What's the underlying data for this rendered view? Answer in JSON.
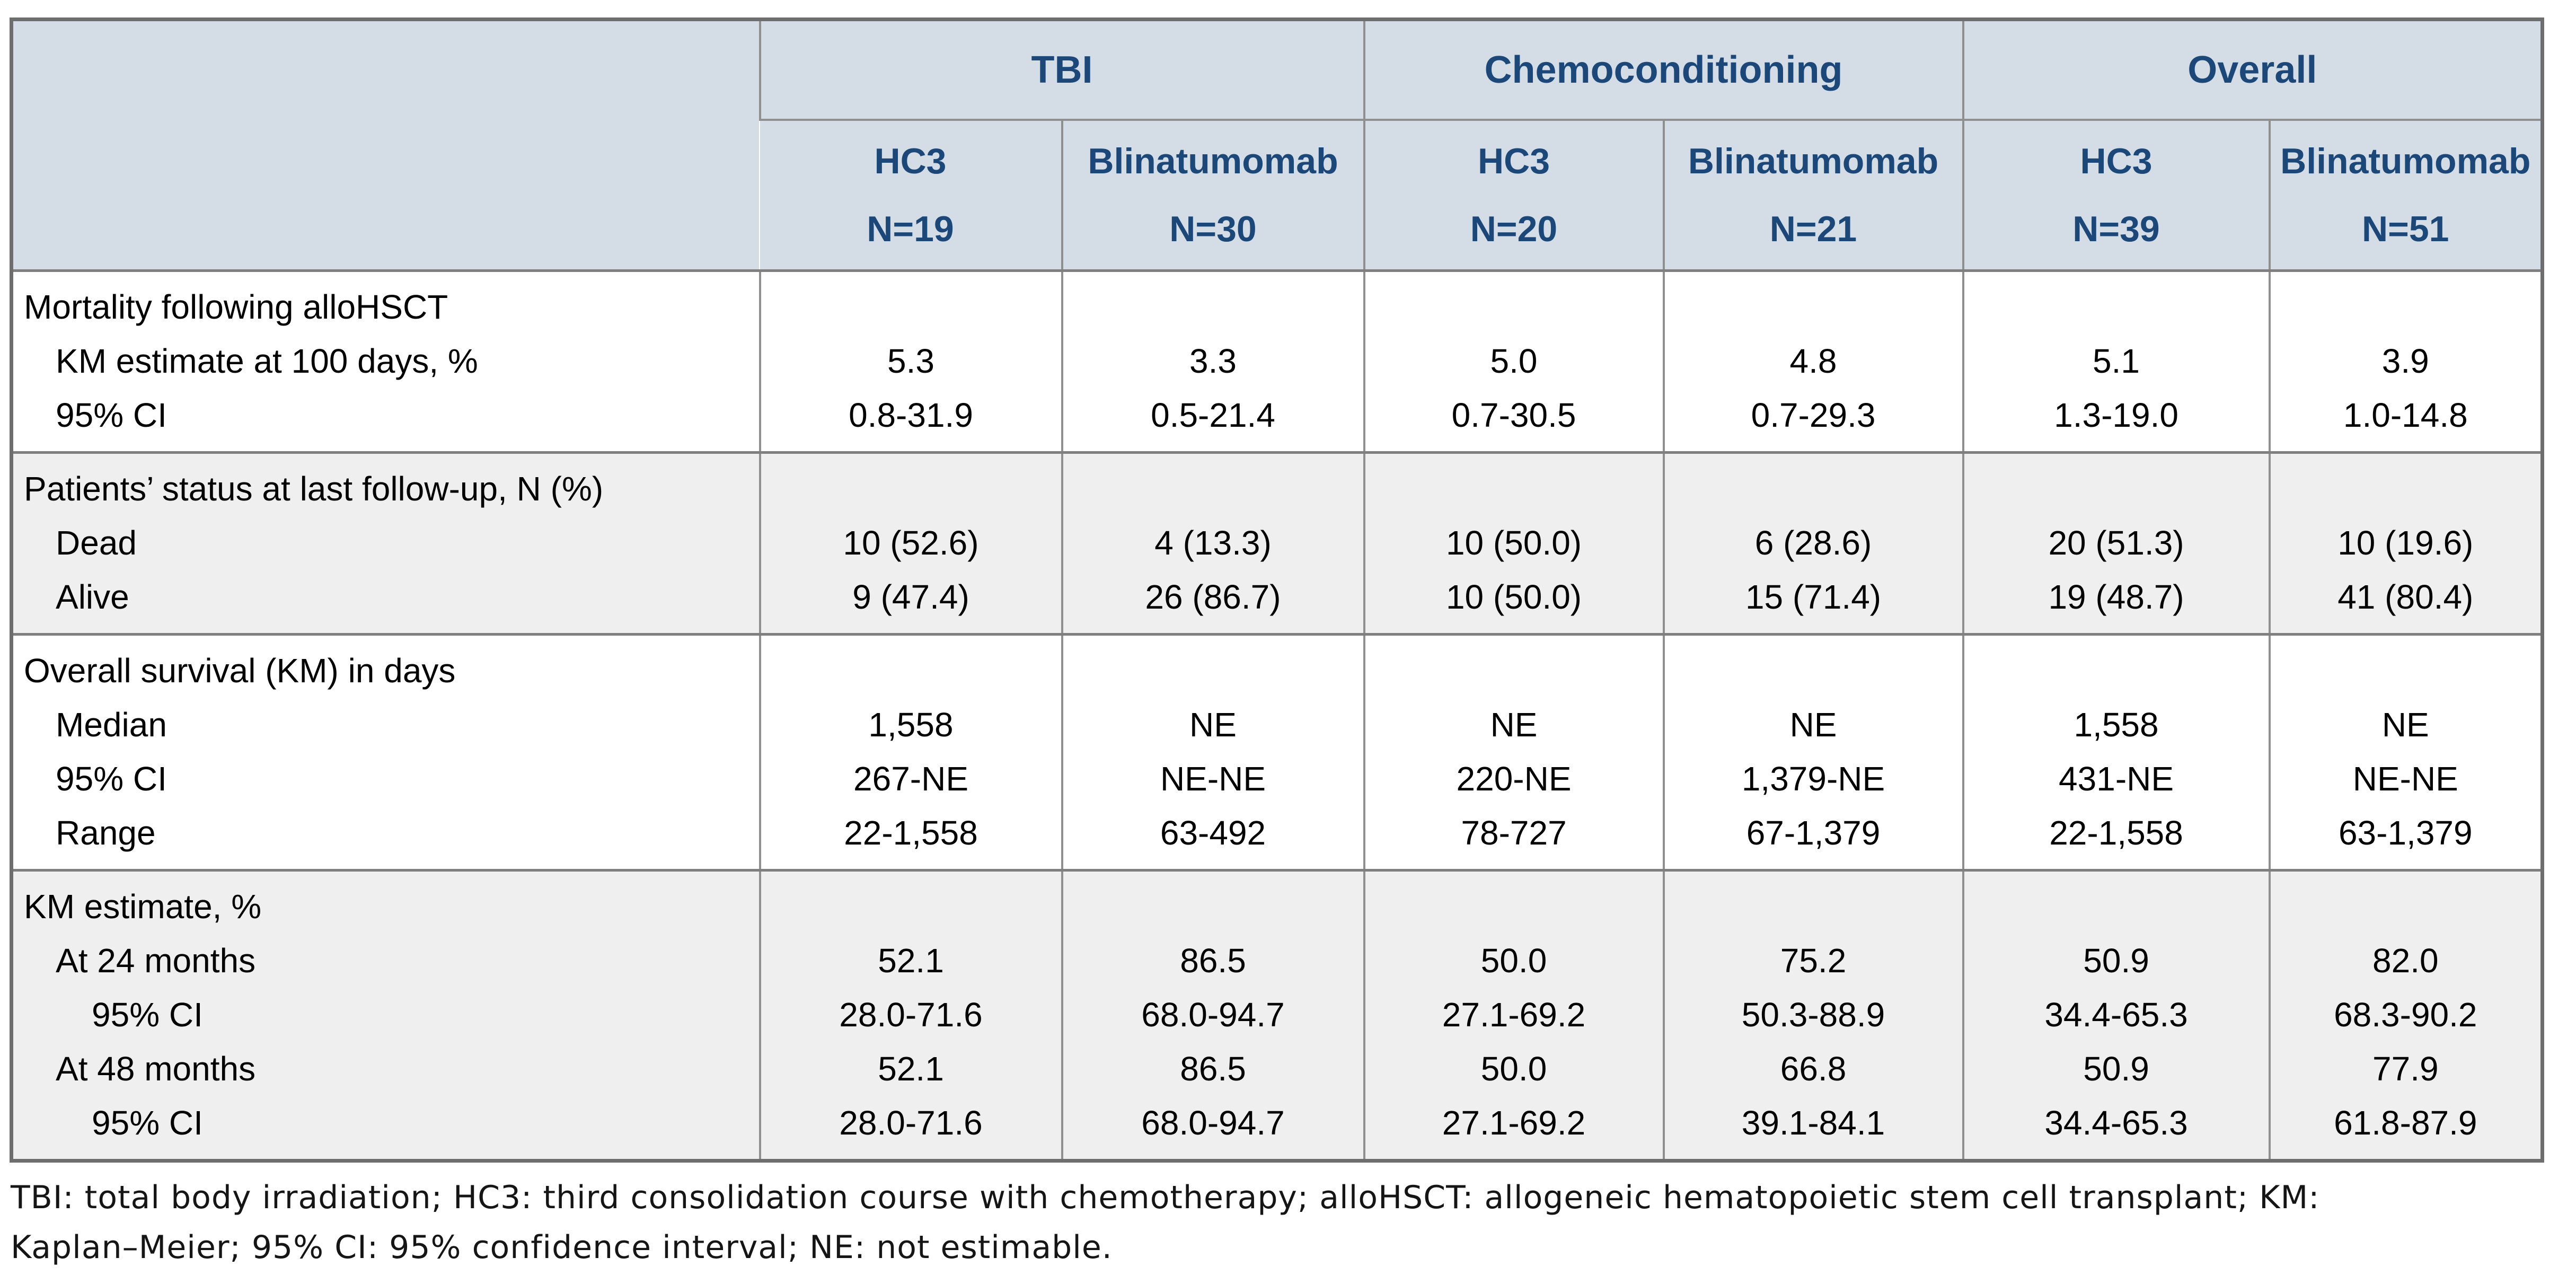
{
  "colors": {
    "header_background": "#D4DDE6",
    "header_text_navy": "#1B4879",
    "group_shade_gray": "#EFEFEF",
    "grid_border_gray": "#8F8F8F",
    "outer_border_gray": "#6E6E6E"
  },
  "table": {
    "header": {
      "corner": "",
      "groups": [
        {
          "label": "TBI"
        },
        {
          "label": "Chemoconditioning"
        },
        {
          "label": "Overall"
        }
      ],
      "columns": [
        {
          "treatment": "HC3",
          "n": "N=19"
        },
        {
          "treatment": "Blinatumomab",
          "n": "N=30"
        },
        {
          "treatment": "HC3",
          "n": "N=20"
        },
        {
          "treatment": "Blinatumomab",
          "n": "N=21"
        },
        {
          "treatment": "HC3",
          "n": "N=39"
        },
        {
          "treatment": "Blinatumomab",
          "n": "N=51"
        }
      ]
    },
    "groups": [
      {
        "shade": "white",
        "rows": [
          {
            "label": "Mortality following alloHSCT",
            "indent": 0,
            "values": [
              "",
              "",
              "",
              "",
              "",
              ""
            ]
          },
          {
            "label": "KM estimate at 100 days, %",
            "indent": 1,
            "values": [
              "5.3",
              "3.3",
              "5.0",
              "4.8",
              "5.1",
              "3.9"
            ]
          },
          {
            "label": "95% CI",
            "indent": 1,
            "values": [
              "0.8-31.9",
              "0.5-21.4",
              "0.7-30.5",
              "0.7-29.3",
              "1.3-19.0",
              "1.0-14.8"
            ]
          }
        ]
      },
      {
        "shade": "gray",
        "rows": [
          {
            "label": "Patients’ status at last follow-up, N (%)",
            "indent": 0,
            "values": [
              "",
              "",
              "",
              "",
              "",
              ""
            ]
          },
          {
            "label": "Dead",
            "indent": 1,
            "values": [
              "10 (52.6)",
              "4 (13.3)",
              "10 (50.0)",
              "6 (28.6)",
              "20 (51.3)",
              "10 (19.6)"
            ]
          },
          {
            "label": "Alive",
            "indent": 1,
            "values": [
              "9 (47.4)",
              "26 (86.7)",
              "10 (50.0)",
              "15 (71.4)",
              "19 (48.7)",
              "41 (80.4)"
            ]
          }
        ]
      },
      {
        "shade": "white",
        "rows": [
          {
            "label": "Overall survival (KM) in days",
            "indent": 0,
            "values": [
              "",
              "",
              "",
              "",
              "",
              ""
            ]
          },
          {
            "label": "Median",
            "indent": 1,
            "values": [
              "1,558",
              "NE",
              "NE",
              "NE",
              "1,558",
              "NE"
            ]
          },
          {
            "label": "95% CI",
            "indent": 1,
            "values": [
              "267-NE",
              "NE-NE",
              "220-NE",
              "1,379-NE",
              "431-NE",
              "NE-NE"
            ]
          },
          {
            "label": "Range",
            "indent": 1,
            "values": [
              "22-1,558",
              "63-492",
              "78-727",
              "67-1,379",
              "22-1,558",
              "63-1,379"
            ]
          }
        ]
      },
      {
        "shade": "gray",
        "rows": [
          {
            "label": "KM estimate, %",
            "indent": 0,
            "values": [
              "",
              "",
              "",
              "",
              "",
              ""
            ]
          },
          {
            "label": "At 24 months",
            "indent": 1,
            "values": [
              "52.1",
              "86.5",
              "50.0",
              "75.2",
              "50.9",
              "82.0"
            ]
          },
          {
            "label": "95% CI",
            "indent": 2,
            "values": [
              "28.0-71.6",
              "68.0-94.7",
              "27.1-69.2",
              "50.3-88.9",
              "34.4-65.3",
              "68.3-90.2"
            ]
          },
          {
            "label": "At 48 months",
            "indent": 1,
            "values": [
              "52.1",
              "86.5",
              "50.0",
              "66.8",
              "50.9",
              "77.9"
            ]
          },
          {
            "label": "95% CI",
            "indent": 2,
            "values": [
              "28.0-71.6",
              "68.0-94.7",
              "27.1-69.2",
              "39.1-84.1",
              "34.4-65.3",
              "61.8-87.9"
            ]
          }
        ]
      }
    ]
  },
  "footnote": {
    "lines": [
      "TBI: total body irradiation; HC3: third consolidation course with chemotherapy; alloHSCT: allogeneic hematopoietic stem cell transplant; KM:",
      "Kaplan–Meier; 95% CI: 95% confidence interval; NE: not estimable."
    ]
  }
}
